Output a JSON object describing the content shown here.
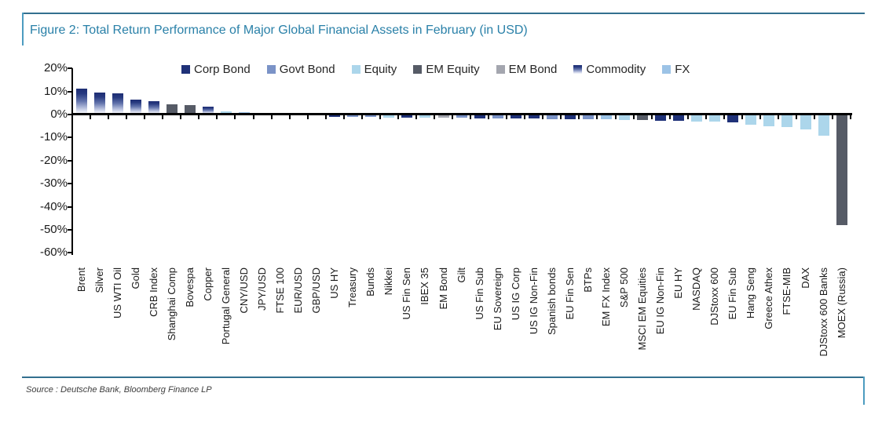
{
  "figure": {
    "title": "Figure 2: Total Return Performance of Major Global Financial Assets in February (in USD)",
    "source": "Source : Deutsche Bank, Bloomberg Finance LP",
    "accent_color": "#2980A8"
  },
  "chart_data": {
    "type": "bar",
    "title": "Total Return Performance of Major Global Financial Assets in February (in USD)",
    "xlabel": "",
    "ylabel": "",
    "y_unit": "%",
    "ylim": [
      -60,
      20
    ],
    "y_tick_step": 10,
    "grid": false,
    "legend_position": "top",
    "legend": [
      {
        "label": "Corp Bond"
      },
      {
        "label": "Govt Bond"
      },
      {
        "label": "Equity"
      },
      {
        "label": "EM Equity"
      },
      {
        "label": "EM Bond"
      },
      {
        "label": "Commodity"
      },
      {
        "label": "FX"
      }
    ],
    "colors": {
      "Corp Bond": "#1F3178",
      "Govt Bond": "#7B93C7",
      "Equity": "#ACD6EB",
      "EM Equity": "#565B66",
      "EM Bond": "#A4A6AF",
      "Commodity": "#1F3076",
      "FX": "#9CC3E6"
    },
    "points": [
      {
        "label": "Brent",
        "value": 10.9,
        "group": "Commodity"
      },
      {
        "label": "Silver",
        "value": 9.1,
        "group": "Commodity"
      },
      {
        "label": "US WTI Oil",
        "value": 8.9,
        "group": "Commodity"
      },
      {
        "label": "Gold",
        "value": 6.2,
        "group": "Commodity"
      },
      {
        "label": "CRB Index",
        "value": 5.5,
        "group": "Commodity"
      },
      {
        "label": "Shanghai Comp",
        "value": 4.0,
        "group": "EM Equity"
      },
      {
        "label": "Bovespa",
        "value": 3.9,
        "group": "EM Equity"
      },
      {
        "label": "Copper",
        "value": 3.0,
        "group": "Commodity"
      },
      {
        "label": "Portugal General",
        "value": 1.0,
        "group": "Equity"
      },
      {
        "label": "CNY/USD",
        "value": 0.8,
        "group": "FX"
      },
      {
        "label": "JPY/USD",
        "value": 0.3,
        "group": "FX"
      },
      {
        "label": "FTSE 100",
        "value": 0.2,
        "group": "Equity"
      },
      {
        "label": "EUR/USD",
        "value": -0.1,
        "group": "FX"
      },
      {
        "label": "GBP/USD",
        "value": -0.3,
        "group": "FX"
      },
      {
        "label": "US HY",
        "value": -0.9,
        "group": "Corp Bond"
      },
      {
        "label": "Treasury",
        "value": -1.0,
        "group": "Govt Bond"
      },
      {
        "label": "Bunds",
        "value": -1.1,
        "group": "Govt Bond"
      },
      {
        "label": "Nikkei",
        "value": -1.2,
        "group": "Equity"
      },
      {
        "label": "US Fin Sen",
        "value": -1.3,
        "group": "Corp Bond"
      },
      {
        "label": "IBEX 35",
        "value": -1.3,
        "group": "Equity"
      },
      {
        "label": "EM Bond",
        "value": -1.4,
        "group": "EM Bond"
      },
      {
        "label": "Gilt",
        "value": -1.5,
        "group": "Govt Bond"
      },
      {
        "label": "US Fin Sub",
        "value": -1.6,
        "group": "Corp Bond"
      },
      {
        "label": "EU Sovereign",
        "value": -1.6,
        "group": "Govt Bond"
      },
      {
        "label": "US IG Corp",
        "value": -1.7,
        "group": "Corp Bond"
      },
      {
        "label": "US IG Non-Fin",
        "value": -1.8,
        "group": "Corp Bond"
      },
      {
        "label": "Spanish bonds",
        "value": -1.9,
        "group": "Govt Bond"
      },
      {
        "label": "EU Fin Sen",
        "value": -2.0,
        "group": "Corp Bond"
      },
      {
        "label": "BTPs",
        "value": -2.1,
        "group": "Govt Bond"
      },
      {
        "label": "EM FX Index",
        "value": -2.2,
        "group": "FX"
      },
      {
        "label": "S&P 500",
        "value": -2.3,
        "group": "Equity"
      },
      {
        "label": "MSCI EM Equities",
        "value": -2.5,
        "group": "EM Equity"
      },
      {
        "label": "EU IG Non-Fin",
        "value": -2.6,
        "group": "Corp Bond"
      },
      {
        "label": "EU HY",
        "value": -2.8,
        "group": "Corp Bond"
      },
      {
        "label": "NASDAQ",
        "value": -3.0,
        "group": "Equity"
      },
      {
        "label": "DJStoxx 600",
        "value": -3.2,
        "group": "Equity"
      },
      {
        "label": "EU Fin Sub",
        "value": -3.3,
        "group": "Corp Bond"
      },
      {
        "label": "Hang Seng",
        "value": -4.5,
        "group": "Equity"
      },
      {
        "label": "Greece Athex",
        "value": -5.0,
        "group": "Equity"
      },
      {
        "label": "FTSE-MIB",
        "value": -5.5,
        "group": "Equity"
      },
      {
        "label": "DAX",
        "value": -6.3,
        "group": "Equity"
      },
      {
        "label": "DJStoxx 600 Banks",
        "value": -9.2,
        "group": "Equity"
      },
      {
        "label": "MOEX (Russia)",
        "value": -48.0,
        "group": "EM Equity"
      }
    ]
  }
}
